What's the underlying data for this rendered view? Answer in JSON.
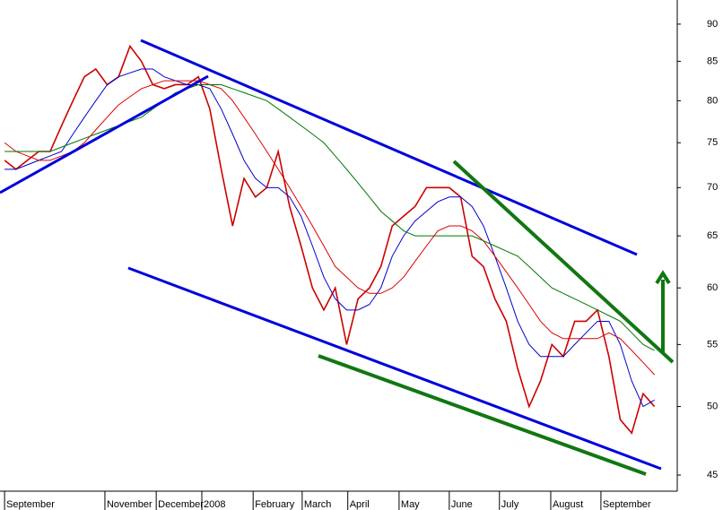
{
  "chart_data": {
    "type": "line",
    "log_y": true,
    "x": [
      0,
      1,
      2,
      3,
      4,
      5,
      6,
      7,
      8,
      9,
      10,
      11,
      12,
      13,
      14,
      15,
      16,
      17,
      18,
      19,
      20,
      21,
      22,
      23,
      24,
      25,
      26,
      27,
      28,
      29,
      30,
      31,
      32,
      33,
      34,
      35,
      36,
      37,
      38,
      39,
      40,
      41,
      42,
      43,
      44,
      45,
      46,
      47,
      48,
      49,
      50,
      51,
      52,
      53,
      54,
      55,
      56,
      57
    ],
    "series": [
      {
        "color": "#cc0000",
        "values": [
          73,
          72,
          73,
          74,
          74,
          77,
          80,
          83,
          84,
          82,
          83,
          87,
          85,
          82,
          81.5,
          82,
          82,
          83,
          79,
          72,
          66,
          71,
          69,
          70,
          74,
          68,
          64,
          60,
          58,
          60,
          55,
          59,
          60,
          62,
          66,
          67,
          68,
          70,
          70,
          70,
          69,
          63,
          62,
          59,
          57,
          53,
          50,
          52,
          55,
          54,
          57,
          57,
          58,
          54,
          49,
          48,
          51,
          50
        ]
      },
      {
        "color": "#0000cc",
        "values": [
          72,
          72,
          72.5,
          73,
          73.5,
          74,
          76,
          78,
          80,
          82,
          83,
          83.5,
          84,
          84,
          83,
          82.5,
          82,
          82,
          81.5,
          79,
          76,
          73,
          71,
          70,
          70,
          69,
          67,
          64,
          61,
          59,
          58,
          58,
          58.5,
          60,
          63,
          65,
          66.5,
          67.5,
          68.5,
          69,
          69,
          68,
          66,
          63,
          60,
          57,
          55,
          54,
          54,
          54,
          55,
          56,
          57,
          57,
          55,
          52,
          50,
          50.5
        ]
      },
      {
        "color": "#dd0000",
        "values": [
          75,
          74,
          73.5,
          73,
          73,
          73.5,
          74,
          75,
          76.5,
          78,
          79.5,
          80.5,
          81.5,
          82,
          82.5,
          82.5,
          82.5,
          82.5,
          82,
          81.5,
          80,
          78,
          76,
          74,
          72,
          70,
          68,
          66,
          64,
          62,
          61,
          60,
          59.5,
          59.5,
          60,
          61,
          62.5,
          64,
          65.5,
          66,
          66,
          65.5,
          64.5,
          63,
          61.5,
          60,
          58.5,
          57,
          56,
          55.5,
          55.5,
          55.5,
          55.5,
          56,
          55.5,
          54.5,
          53.5,
          52.5
        ]
      },
      {
        "color": "#007700",
        "values": [
          74,
          74,
          74,
          74,
          74,
          74.5,
          75,
          75.5,
          76,
          76.5,
          77,
          77.5,
          78,
          79,
          80,
          81,
          81.5,
          82,
          82,
          82,
          81.5,
          81,
          80.5,
          80,
          79,
          78,
          77,
          76,
          75,
          73.5,
          72,
          70.5,
          69,
          67.5,
          66.5,
          65.5,
          65,
          65,
          65,
          65,
          65,
          65,
          64.5,
          64,
          63.5,
          63,
          62,
          61,
          60,
          59.5,
          59,
          58.5,
          58,
          57.5,
          57,
          56,
          55,
          54.5
        ]
      }
    ],
    "xlim": [
      -0.4,
      58.6
    ],
    "xticks": [
      {
        "value": 0,
        "label": "September"
      },
      {
        "value": 8.8,
        "label": "November"
      },
      {
        "value": 13.3,
        "label": "December"
      },
      {
        "value": 17.3,
        "label": "2008"
      },
      {
        "value": 21.8,
        "label": "February"
      },
      {
        "value": 26.1,
        "label": "March"
      },
      {
        "value": 30.1,
        "label": "April"
      },
      {
        "value": 34.6,
        "label": "May"
      },
      {
        "value": 39,
        "label": "June"
      },
      {
        "value": 43.4,
        "label": "July"
      },
      {
        "value": 47.9,
        "label": "August"
      },
      {
        "value": 52.3,
        "label": "September"
      }
    ],
    "ylim": [
      43.9,
      93.4
    ],
    "yticks": [
      45,
      50,
      55,
      60,
      65,
      70,
      75,
      80,
      85,
      90
    ]
  }
}
